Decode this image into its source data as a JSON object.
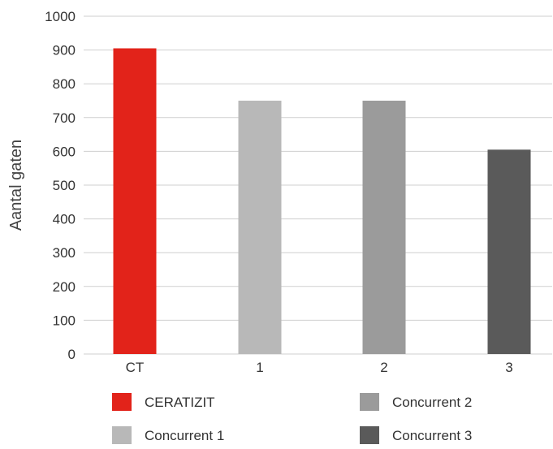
{
  "chart_data": {
    "type": "bar",
    "categories": [
      "CT",
      "1",
      "2",
      "3"
    ],
    "series": [
      {
        "name": "CERATIZIT",
        "category": "CT",
        "value": 905,
        "color": "#e2231a"
      },
      {
        "name": "Concurrent 1",
        "category": "1",
        "value": 750,
        "color": "#b8b8b8"
      },
      {
        "name": "Concurrent 2",
        "category": "2",
        "value": 750,
        "color": "#9b9b9b"
      },
      {
        "name": "Concurrent 3",
        "category": "3",
        "value": 605,
        "color": "#5a5a5a"
      }
    ],
    "ylabel": "Aantal gaten",
    "xlabel": "",
    "ylim": [
      0,
      1000
    ],
    "yticks": [
      0,
      100,
      200,
      300,
      400,
      500,
      600,
      700,
      800,
      900,
      1000
    ],
    "grid": true,
    "legend_position": "bottom",
    "legend_order": [
      "CERATIZIT",
      "Concurrent 2",
      "Concurrent 1",
      "Concurrent 3"
    ]
  }
}
